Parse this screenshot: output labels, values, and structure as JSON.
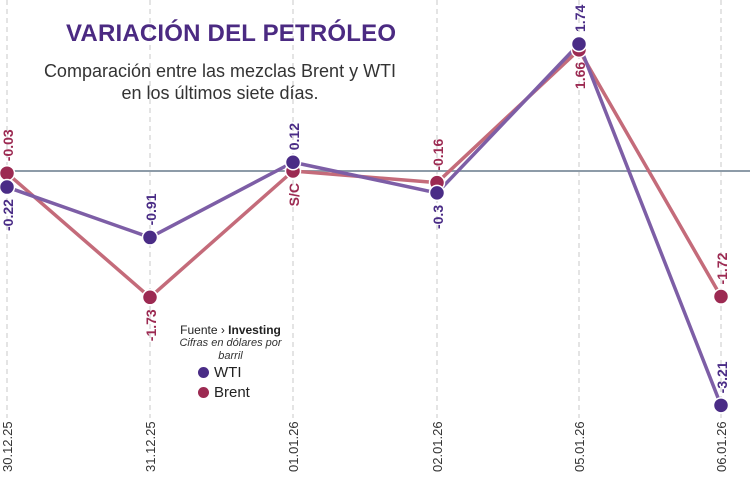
{
  "chart_data": {
    "type": "line",
    "title": "VARIACIÓN DEL PETRÓLEO",
    "subtitle": "Comparación entre las mezclas Brent y WTI en los últimos siete días.",
    "categories": [
      "30.12.25",
      "31.12.25",
      "01.01.26",
      "02.01.26",
      "05.01.26",
      "06.01.26"
    ],
    "series": [
      {
        "name": "WTI",
        "color": "#4a2c86",
        "line_color": "#7d5ea6",
        "values": [
          -0.22,
          -0.91,
          0.12,
          -0.3,
          1.74,
          -3.21
        ],
        "labels": [
          "-0.22",
          "-0.91",
          "0.12",
          "-0.3",
          "1.74",
          "-3.21"
        ]
      },
      {
        "name": "Brent",
        "color": "#9c2a52",
        "line_color": "#c46b7a",
        "values": [
          -0.03,
          -1.73,
          0,
          -0.16,
          1.66,
          -1.72
        ],
        "labels": [
          "-0.03",
          "-1.73",
          "S/C",
          "-0.16",
          "1.66",
          "-1.72"
        ]
      }
    ],
    "zero_line": true,
    "grid": "vertical dashed",
    "legend_placement": "bottom-center",
    "source_label": "Fuente",
    "source": "Investing",
    "note": "Cifras en dólares por barril"
  }
}
